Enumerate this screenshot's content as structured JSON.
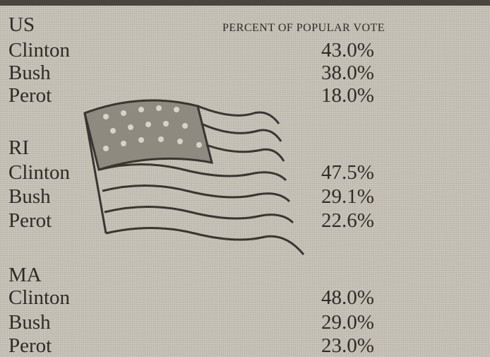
{
  "table": {
    "header": "PERCENT OF POPULAR VOTE",
    "sections": [
      {
        "region": "US",
        "rows": [
          [
            "Clinton",
            "43.0%"
          ],
          [
            "Bush",
            "38.0%"
          ],
          [
            "Perot",
            "18.0%"
          ]
        ]
      },
      {
        "region": "RI",
        "rows": [
          [
            "Clinton",
            "47.5%"
          ],
          [
            "Bush",
            "29.1%"
          ],
          [
            "Perot",
            "22.6%"
          ]
        ]
      },
      {
        "region": "MA",
        "rows": [
          [
            "Clinton",
            "48.0%"
          ],
          [
            "Bush",
            "29.0%"
          ],
          [
            "Perot",
            "23.0%"
          ]
        ]
      }
    ]
  }
}
